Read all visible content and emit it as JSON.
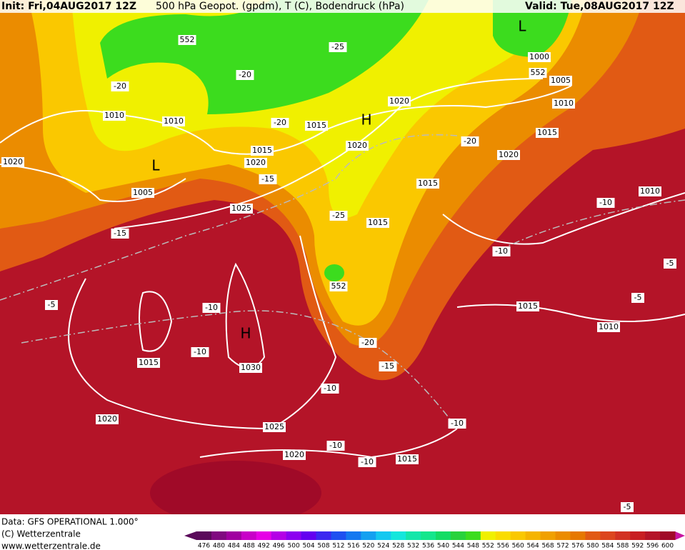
{
  "header": {
    "init": "Init: Fri,04AUG2017 12Z",
    "title": "500 hPa Geopot. (gpdm), T (C), Bodendruck (hPa)",
    "valid": "Valid: Tue,08AUG2017 12Z"
  },
  "footer": {
    "data": "Data: GFS OPERATIONAL 1.000°",
    "copyright": "(C) Wetterzentrale",
    "url": "www.wetterzentrale.de"
  },
  "legend": {
    "labels": [
      "476",
      "480",
      "484",
      "488",
      "492",
      "496",
      "500",
      "504",
      "508",
      "512",
      "516",
      "520",
      "524",
      "528",
      "532",
      "536",
      "540",
      "544",
      "548",
      "552",
      "556",
      "560",
      "564",
      "568",
      "572",
      "576",
      "580",
      "584",
      "588",
      "592",
      "596",
      "600"
    ],
    "colors": [
      "#5a0a5a",
      "#800a80",
      "#a000a0",
      "#c800c8",
      "#e600e6",
      "#b400e6",
      "#8c00f0",
      "#6400f0",
      "#3c28f0",
      "#1e50f0",
      "#1478f0",
      "#14a0f0",
      "#14c8f0",
      "#14e6dc",
      "#14e6aa",
      "#14e68c",
      "#14dc64",
      "#28d23c",
      "#3cdc1e",
      "#f0f000",
      "#fadc00",
      "#fac800",
      "#f5b400",
      "#f0a000",
      "#eb8c00",
      "#e67800",
      "#e15a14",
      "#dc461e",
      "#d23223",
      "#c81e23",
      "#b41428",
      "#a00a28"
    ]
  },
  "map": {
    "labels": [
      "1010",
      "1010",
      "1020",
      "1005",
      "1025",
      "-15",
      "-20",
      "552",
      "-20",
      "-25",
      "-20",
      "1015",
      "1015",
      "1020",
      "-15",
      "1020",
      "1020",
      "-25",
      "1015",
      "1015",
      "-20",
      "1020",
      "1015",
      "1000",
      "552",
      "1005",
      "1010",
      "1010",
      "-10",
      "-10",
      "-5",
      "-5",
      "1015",
      "1010",
      "-5",
      "-10",
      "-10",
      "1015",
      "1030",
      "552",
      "-20",
      "-15",
      "-10",
      "-10",
      "1020",
      "1025",
      "1020",
      "-10",
      "-10",
      "1015",
      "-5"
    ],
    "centers": [
      "L",
      "L",
      "H",
      "H"
    ]
  }
}
